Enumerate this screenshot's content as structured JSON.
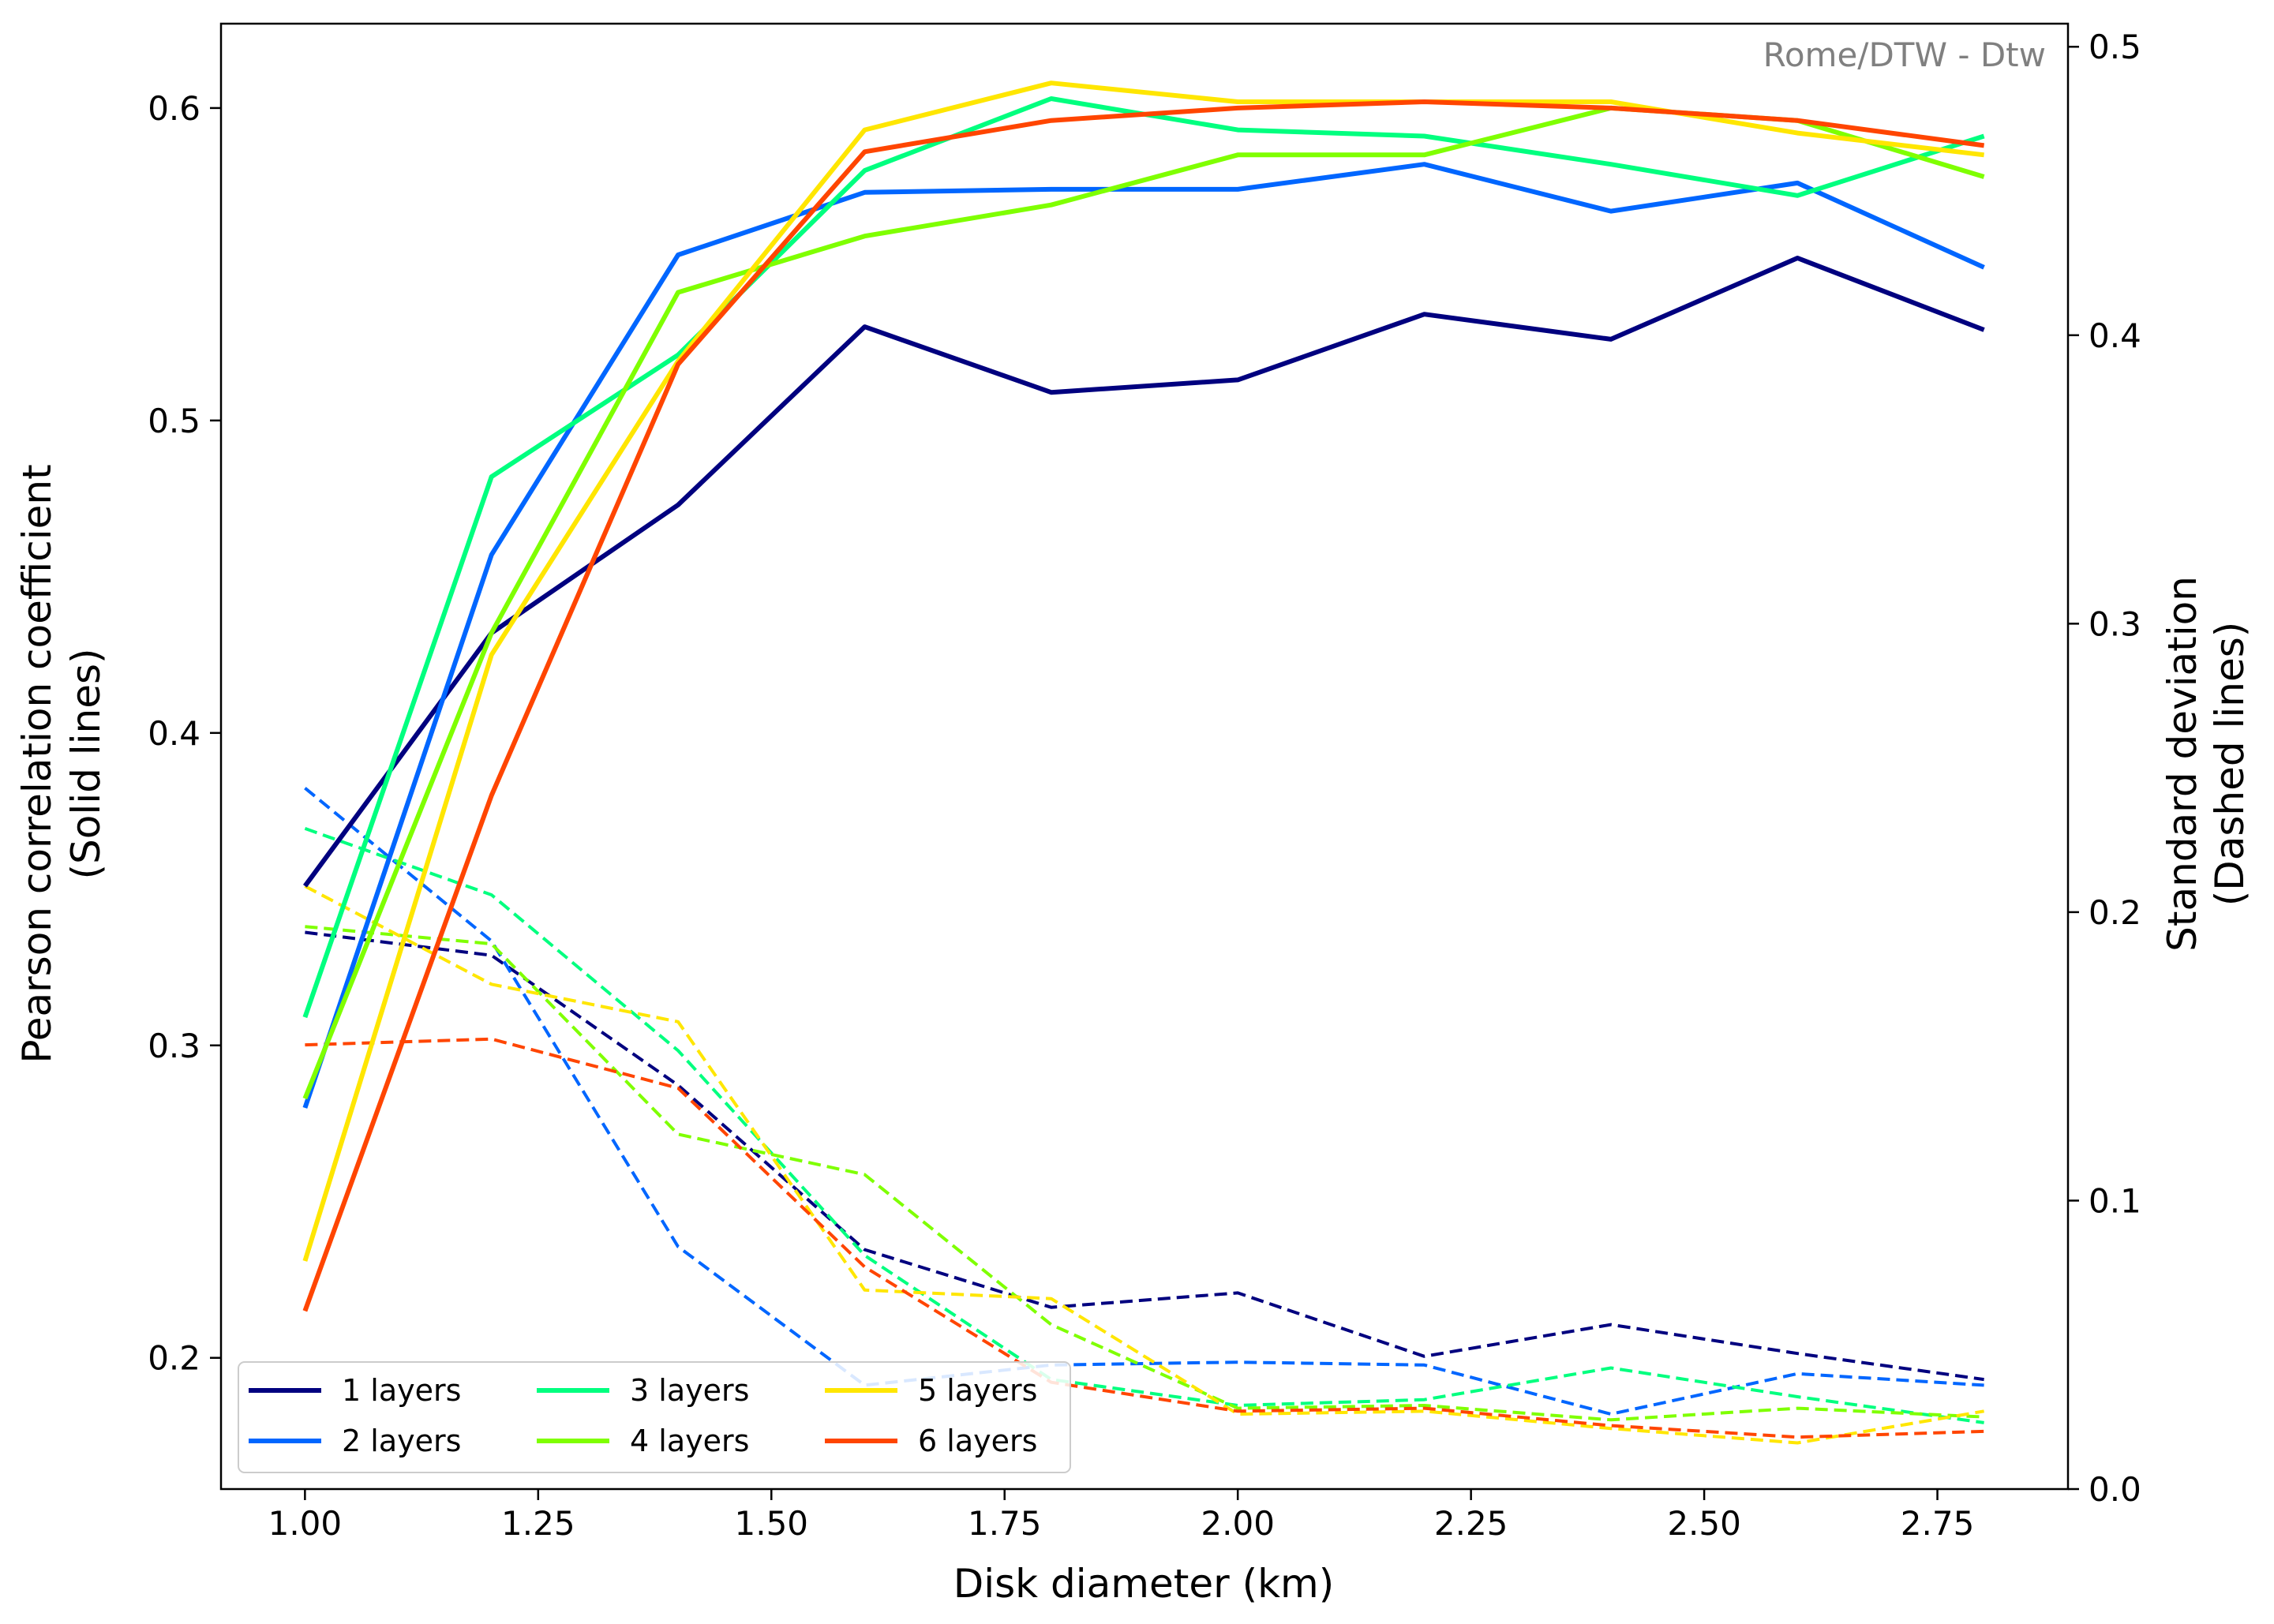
{
  "chart_data": {
    "type": "line",
    "annotation": "Rome/DTW - Dtw",
    "xlabel": "Disk diameter (km)",
    "ylabel_left": [
      "Pearson correlation coefficient",
      "(Solid lines)"
    ],
    "ylabel_right": [
      "Standard deviation",
      "(Dashed lines)"
    ],
    "xlim": [
      0.91,
      2.89
    ],
    "ylim_left": [
      0.158,
      0.627
    ],
    "ylim_right": [
      0.0,
      0.508
    ],
    "x_ticks": [
      1.0,
      1.25,
      1.5,
      1.75,
      2.0,
      2.25,
      2.5,
      2.75
    ],
    "x_tick_labels": [
      "1.00",
      "1.25",
      "1.50",
      "1.75",
      "2.00",
      "2.25",
      "2.50",
      "2.75"
    ],
    "y_left_ticks": [
      0.2,
      0.3,
      0.4,
      0.5,
      0.6
    ],
    "y_left_tick_labels": [
      "0.2",
      "0.3",
      "0.4",
      "0.5",
      "0.6"
    ],
    "y_right_ticks": [
      0.0,
      0.1,
      0.2,
      0.3,
      0.4,
      0.5
    ],
    "y_right_tick_labels": [
      "0.0",
      "0.1",
      "0.2",
      "0.3",
      "0.4",
      "0.5"
    ],
    "grid": false,
    "legend_position": "lower-left",
    "x": [
      1.0,
      1.2,
      1.4,
      1.6,
      1.8,
      2.0,
      2.2,
      2.4,
      2.6,
      2.8
    ],
    "series": [
      {
        "name": "1 layers",
        "color": "#00007f",
        "correlation": [
          0.351,
          0.432,
          0.473,
          0.53,
          0.509,
          0.513,
          0.534,
          0.526,
          0.552,
          0.529
        ],
        "std_dev": [
          0.193,
          0.185,
          0.14,
          0.083,
          0.063,
          0.068,
          0.046,
          0.057,
          0.047,
          0.038
        ]
      },
      {
        "name": "2 layers",
        "color": "#0066ff",
        "correlation": [
          0.28,
          0.457,
          0.553,
          0.573,
          0.574,
          0.574,
          0.582,
          0.567,
          0.576,
          0.549
        ],
        "std_dev": [
          0.243,
          0.19,
          0.084,
          0.036,
          0.043,
          0.044,
          0.043,
          0.026,
          0.04,
          0.036
        ]
      },
      {
        "name": "3 layers",
        "color": "#00ff7f",
        "correlation": [
          0.309,
          0.482,
          0.521,
          0.58,
          0.603,
          0.593,
          0.591,
          0.582,
          0.572,
          0.591
        ],
        "std_dev": [
          0.229,
          0.206,
          0.152,
          0.081,
          0.038,
          0.029,
          0.031,
          0.042,
          0.032,
          0.023
        ]
      },
      {
        "name": "4 layers",
        "color": "#7fff00",
        "correlation": [
          0.283,
          0.432,
          0.541,
          0.559,
          0.569,
          0.585,
          0.585,
          0.6,
          0.596,
          0.578
        ],
        "std_dev": [
          0.195,
          0.189,
          0.123,
          0.109,
          0.057,
          0.028,
          0.029,
          0.024,
          0.028,
          0.025
        ]
      },
      {
        "name": "5 layers",
        "color": "#ffe600",
        "correlation": [
          0.231,
          0.425,
          0.519,
          0.593,
          0.608,
          0.602,
          0.602,
          0.602,
          0.592,
          0.585
        ],
        "std_dev": [
          0.209,
          0.175,
          0.162,
          0.069,
          0.066,
          0.026,
          0.027,
          0.021,
          0.016,
          0.027
        ]
      },
      {
        "name": "6 layers",
        "color": "#ff4500",
        "correlation": [
          0.215,
          0.38,
          0.518,
          0.586,
          0.596,
          0.6,
          0.602,
          0.6,
          0.596,
          0.588
        ],
        "std_dev": [
          0.154,
          0.156,
          0.139,
          0.077,
          0.037,
          0.027,
          0.028,
          0.022,
          0.018,
          0.02
        ]
      }
    ]
  }
}
